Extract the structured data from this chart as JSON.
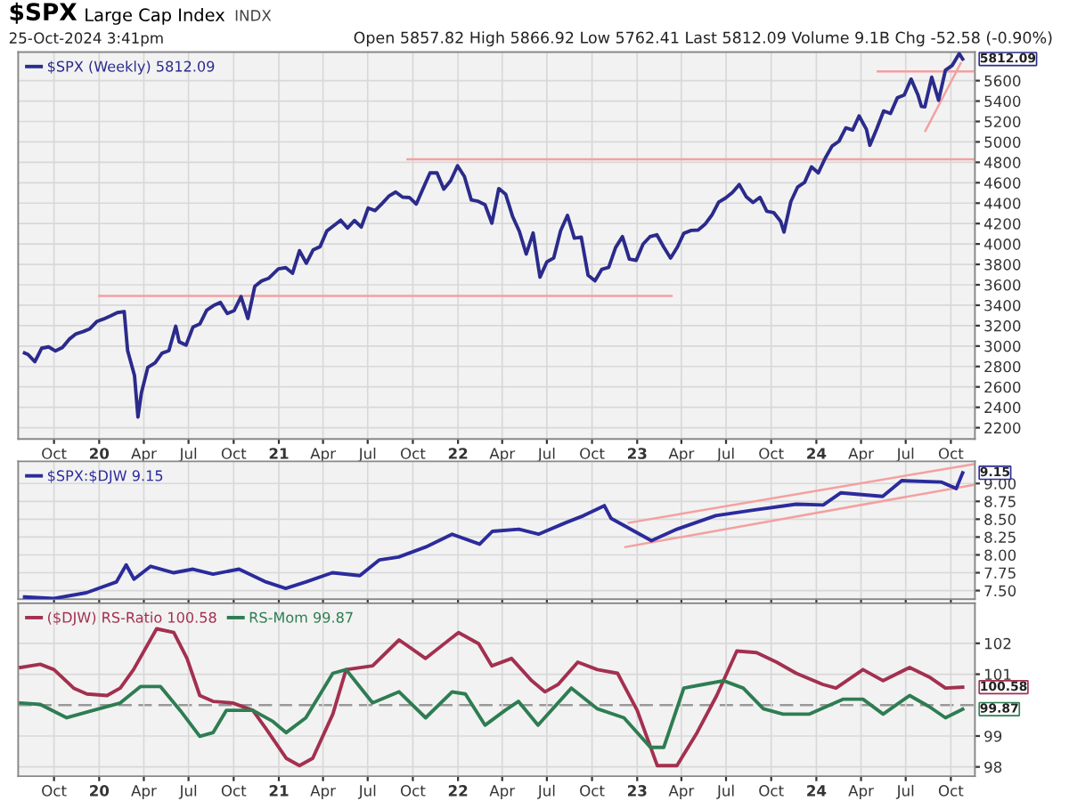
{
  "chart_data": [
    {
      "type": "line",
      "title": "$SPX",
      "subtitle": "25-Oct-2024 3:41pm",
      "annotations": [
        "Large Cap Index",
        "INDX",
        "Open 5857.82 High 5866.92 Low 5762.41 Last 5812.09 Volume 9.1B Chg -52.58 (-0.90%)",
        {
          "text": "5812.09",
          "x": "2024-10-25",
          "y": 5812.09
        }
      ],
      "xlim": [
        "2019-07-20",
        "2024-11-19"
      ],
      "ylim": [
        2090,
        5880
      ],
      "xticks": [
        {
          "value": "2019-10-01",
          "label": "Oct"
        },
        {
          "value": "2020-01-01",
          "label": "20"
        },
        {
          "value": "2020-04-01",
          "label": "Apr"
        },
        {
          "value": "2020-07-01",
          "label": "Jul"
        },
        {
          "value": "2020-10-01",
          "label": "Oct"
        },
        {
          "value": "2021-01-01",
          "label": "21"
        },
        {
          "value": "2021-04-01",
          "label": "Apr"
        },
        {
          "value": "2021-07-01",
          "label": "Jul"
        },
        {
          "value": "2021-10-01",
          "label": "Oct"
        },
        {
          "value": "2022-01-01",
          "label": "22"
        },
        {
          "value": "2022-04-01",
          "label": "Apr"
        },
        {
          "value": "2022-07-01",
          "label": "Jul"
        },
        {
          "value": "2022-10-01",
          "label": "Oct"
        },
        {
          "value": "2023-01-01",
          "label": "23"
        },
        {
          "value": "2023-04-01",
          "label": "Apr"
        },
        {
          "value": "2023-07-01",
          "label": "Jul"
        },
        {
          "value": "2023-10-01",
          "label": "Oct"
        },
        {
          "value": "2024-01-01",
          "label": "24"
        },
        {
          "value": "2024-04-01",
          "label": "Apr"
        },
        {
          "value": "2024-07-01",
          "label": "Jul"
        },
        {
          "value": "2024-10-01",
          "label": "Oct"
        }
      ],
      "yticks": [
        2200,
        2400,
        2600,
        2800,
        3000,
        3200,
        3400,
        3600,
        3800,
        4000,
        4200,
        4400,
        4600,
        4800,
        5000,
        5200,
        5400,
        5600
      ],
      "grid": true,
      "legend": "top left",
      "series": [
        {
          "name": "$SPX (Weekly) 5812.09",
          "color": "#2b2b8c",
          "x": [
            "2019-08-02",
            "2019-08-09",
            "2019-08-23",
            "2019-09-06",
            "2019-09-20",
            "2019-10-04",
            "2019-10-18",
            "2019-11-01",
            "2019-11-15",
            "2019-11-29",
            "2019-12-13",
            "2019-12-27",
            "2020-01-10",
            "2020-01-24",
            "2020-02-07",
            "2020-02-21",
            "2020-02-28",
            "2020-03-13",
            "2020-03-20",
            "2020-03-27",
            "2020-04-09",
            "2020-04-24",
            "2020-05-08",
            "2020-05-22",
            "2020-06-05",
            "2020-06-12",
            "2020-06-26",
            "2020-07-10",
            "2020-07-24",
            "2020-08-07",
            "2020-08-21",
            "2020-09-04",
            "2020-09-18",
            "2020-10-02",
            "2020-10-16",
            "2020-10-30",
            "2020-11-13",
            "2020-11-27",
            "2020-12-11",
            "2020-12-31",
            "2021-01-15",
            "2021-01-29",
            "2021-02-12",
            "2021-02-26",
            "2021-03-12",
            "2021-03-26",
            "2021-04-09",
            "2021-04-23",
            "2021-05-07",
            "2021-05-21",
            "2021-06-04",
            "2021-06-18",
            "2021-07-02",
            "2021-07-16",
            "2021-07-30",
            "2021-08-13",
            "2021-08-27",
            "2021-09-10",
            "2021-09-24",
            "2021-10-08",
            "2021-10-22",
            "2021-11-05",
            "2021-11-19",
            "2021-12-03",
            "2021-12-17",
            "2021-12-31",
            "2022-01-14",
            "2022-01-28",
            "2022-02-11",
            "2022-02-25",
            "2022-03-11",
            "2022-03-25",
            "2022-04-08",
            "2022-04-22",
            "2022-05-06",
            "2022-05-20",
            "2022-06-03",
            "2022-06-17",
            "2022-07-01",
            "2022-07-15",
            "2022-07-29",
            "2022-08-12",
            "2022-08-26",
            "2022-09-09",
            "2022-09-23",
            "2022-10-07",
            "2022-10-21",
            "2022-11-04",
            "2022-11-18",
            "2022-12-02",
            "2022-12-16",
            "2022-12-30",
            "2023-01-13",
            "2023-01-27",
            "2023-02-10",
            "2023-02-24",
            "2023-03-10",
            "2023-03-24",
            "2023-04-06",
            "2023-04-21",
            "2023-05-05",
            "2023-05-19",
            "2023-06-02",
            "2023-06-16",
            "2023-06-30",
            "2023-07-14",
            "2023-07-28",
            "2023-08-11",
            "2023-08-25",
            "2023-09-08",
            "2023-09-22",
            "2023-10-06",
            "2023-10-20",
            "2023-10-27",
            "2023-11-10",
            "2023-11-24",
            "2023-12-08",
            "2023-12-22",
            "2024-01-05",
            "2024-01-19",
            "2024-02-02",
            "2024-02-16",
            "2024-03-01",
            "2024-03-15",
            "2024-03-28",
            "2024-04-12",
            "2024-04-19",
            "2024-05-03",
            "2024-05-17",
            "2024-05-31",
            "2024-06-14",
            "2024-06-28",
            "2024-07-12",
            "2024-07-26",
            "2024-08-02",
            "2024-08-09",
            "2024-08-23",
            "2024-09-06",
            "2024-09-20",
            "2024-10-04",
            "2024-10-18",
            "2024-10-25"
          ],
          "values": [
            2932,
            2918,
            2847,
            2979,
            2992,
            2952,
            2986,
            3067,
            3120,
            3141,
            3169,
            3240,
            3265,
            3295,
            3328,
            3338,
            2954,
            2711,
            2305,
            2541,
            2790,
            2837,
            2930,
            2955,
            3194,
            3041,
            3009,
            3185,
            3216,
            3351,
            3397,
            3427,
            3319,
            3348,
            3484,
            3270,
            3585,
            3638,
            3663,
            3756,
            3768,
            3714,
            3934,
            3811,
            3943,
            3974,
            4129,
            4180,
            4233,
            4156,
            4230,
            4166,
            4352,
            4327,
            4395,
            4468,
            4509,
            4459,
            4455,
            4391,
            4545,
            4697,
            4698,
            4538,
            4620,
            4766,
            4662,
            4432,
            4418,
            4385,
            4204,
            4543,
            4488,
            4272,
            4123,
            3901,
            4108,
            3675,
            3825,
            3863,
            4130,
            4280,
            4057,
            4067,
            3693,
            3639,
            3752,
            3771,
            3965,
            4072,
            3852,
            3840,
            3999,
            4071,
            4090,
            3970,
            3862,
            3971,
            4105,
            4133,
            4136,
            4192,
            4282,
            4410,
            4450,
            4505,
            4582,
            4464,
            4406,
            4457,
            4320,
            4308,
            4224,
            4117,
            4415,
            4559,
            4604,
            4755,
            4697,
            4840,
            4959,
            5006,
            5137,
            5117,
            5254,
            5123,
            4967,
            5128,
            5303,
            5278,
            5432,
            5460,
            5615,
            5459,
            5347,
            5344,
            5634,
            5408,
            5703,
            5751,
            5865,
            5812.09
          ]
        },
        {
          "color": "#f4a0a0",
          "x": [
            "2020-01-01",
            "2023-03-12"
          ],
          "values": [
            3490,
            3490
          ]
        },
        {
          "color": "#f4a0a0",
          "x": [
            "2021-09-20",
            "2024-11-15"
          ],
          "values": [
            4830,
            4830
          ]
        },
        {
          "color": "#f4a0a0",
          "x": [
            "2024-05-05",
            "2024-11-15"
          ],
          "values": [
            5690,
            5690
          ]
        },
        {
          "color": "#f4a0a0",
          "x": [
            "2024-08-10",
            "2024-10-21"
          ],
          "values": [
            5108,
            5770
          ]
        }
      ]
    },
    {
      "type": "line",
      "tick_labels": "y",
      "grid": true,
      "legend": "top left",
      "annotations": [
        {
          "text": "9.15",
          "x": "2024-10-25",
          "y": 9.15
        }
      ],
      "xlim": [
        "2019-07-20",
        "2024-11-19"
      ],
      "ylim": [
        7.38,
        9.31
      ],
      "xticks": [
        {
          "value": "2019-10-01",
          "label": null
        },
        {
          "value": "2020-01-01",
          "label": null
        },
        {
          "value": "2020-04-01",
          "label": null
        },
        {
          "value": "2020-07-01",
          "label": null
        },
        {
          "value": "2020-10-01",
          "label": null
        },
        {
          "value": "2021-01-01",
          "label": null
        },
        {
          "value": "2021-04-01",
          "label": null
        },
        {
          "value": "2021-07-01",
          "label": null
        },
        {
          "value": "2021-10-01",
          "label": null
        },
        {
          "value": "2022-01-01",
          "label": null
        },
        {
          "value": "2022-04-01",
          "label": null
        },
        {
          "value": "2022-07-01",
          "label": null
        },
        {
          "value": "2022-10-01",
          "label": null
        },
        {
          "value": "2023-01-01",
          "label": null
        },
        {
          "value": "2023-04-01",
          "label": null
        },
        {
          "value": "2023-07-01",
          "label": null
        },
        {
          "value": "2023-10-01",
          "label": null
        },
        {
          "value": "2024-01-01",
          "label": null
        },
        {
          "value": "2024-04-01",
          "label": null
        },
        {
          "value": "2024-07-01",
          "label": null
        },
        {
          "value": "2024-10-01",
          "label": null
        }
      ],
      "yticks": [
        {
          "value": 7.5,
          "label": "7.50"
        },
        {
          "value": 7.75,
          "label": "7.75"
        },
        {
          "value": 8.0,
          "label": "8.00"
        },
        {
          "value": 8.25,
          "label": "8.25"
        },
        {
          "value": 8.5,
          "label": "8.50"
        },
        {
          "value": 8.75,
          "label": "8.75"
        },
        {
          "value": 9.0,
          "label": "9.00"
        }
      ],
      "series": [
        {
          "name": "$SPX:$DJW 9.15",
          "color": "#2b2b9c",
          "x": [
            "2019-08-02",
            "2019-10-01",
            "2019-12-06",
            "2020-02-05",
            "2020-02-25",
            "2020-03-12",
            "2020-04-15",
            "2020-06-01",
            "2020-07-10",
            "2020-08-20",
            "2020-10-12",
            "2020-12-06",
            "2021-01-15",
            "2021-02-25",
            "2021-04-20",
            "2021-06-15",
            "2021-07-25",
            "2021-09-02",
            "2021-10-27",
            "2021-12-20",
            "2022-02-14",
            "2022-03-12",
            "2022-05-05",
            "2022-06-14",
            "2022-08-08",
            "2022-09-14",
            "2022-10-26",
            "2022-11-09",
            "2023-01-30",
            "2023-03-23",
            "2023-06-10",
            "2023-08-29",
            "2023-11-21",
            "2024-01-15",
            "2024-02-20",
            "2024-05-15",
            "2024-06-23",
            "2024-09-12",
            "2024-10-12",
            "2024-10-25"
          ],
          "values": [
            7.41,
            7.39,
            7.47,
            7.62,
            7.86,
            7.66,
            7.84,
            7.75,
            7.8,
            7.73,
            7.8,
            7.62,
            7.53,
            7.62,
            7.75,
            7.71,
            7.93,
            7.97,
            8.11,
            8.29,
            8.15,
            8.33,
            8.36,
            8.29,
            8.45,
            8.55,
            8.69,
            8.51,
            8.2,
            8.36,
            8.55,
            8.63,
            8.71,
            8.7,
            8.87,
            8.82,
            9.04,
            9.02,
            8.93,
            9.15
          ]
        },
        {
          "color": "#f4a0a0",
          "x": [
            "2022-12-08",
            "2024-11-15"
          ],
          "values": [
            8.11,
            8.98
          ]
        },
        {
          "color": "#f4a0a0",
          "x": [
            "2022-12-15",
            "2024-11-15"
          ],
          "values": [
            8.45,
            9.27
          ]
        }
      ]
    },
    {
      "type": "line",
      "grid": true,
      "legend": "top left",
      "annotations": [
        {
          "text": "100.58",
          "x": "2024-10-25",
          "y": 100.58
        },
        {
          "text": "99.87",
          "x": "2024-10-25",
          "y": 99.87
        }
      ],
      "xlim": [
        "2019-07-20",
        "2024-11-19"
      ],
      "ylim": [
        97.7,
        103.3
      ],
      "xticks": [
        {
          "value": "2019-10-01",
          "label": "Oct"
        },
        {
          "value": "2020-01-01",
          "label": "20"
        },
        {
          "value": "2020-04-01",
          "label": "Apr"
        },
        {
          "value": "2020-07-01",
          "label": "Jul"
        },
        {
          "value": "2020-10-01",
          "label": "Oct"
        },
        {
          "value": "2021-01-01",
          "label": "21"
        },
        {
          "value": "2021-04-01",
          "label": "Apr"
        },
        {
          "value": "2021-07-01",
          "label": "Jul"
        },
        {
          "value": "2021-10-01",
          "label": "Oct"
        },
        {
          "value": "2022-01-01",
          "label": "22"
        },
        {
          "value": "2022-04-01",
          "label": "Apr"
        },
        {
          "value": "2022-07-01",
          "label": "Jul"
        },
        {
          "value": "2022-10-01",
          "label": "Oct"
        },
        {
          "value": "2023-01-01",
          "label": "23"
        },
        {
          "value": "2023-04-01",
          "label": "Apr"
        },
        {
          "value": "2023-07-01",
          "label": "Jul"
        },
        {
          "value": "2023-10-01",
          "label": "Oct"
        },
        {
          "value": "2024-01-01",
          "label": "24"
        },
        {
          "value": "2024-04-01",
          "label": "Apr"
        },
        {
          "value": "2024-07-01",
          "label": "Jul"
        },
        {
          "value": "2024-10-01",
          "label": "Oct"
        }
      ],
      "yticks": [
        98,
        99,
        101,
        102
      ],
      "ref_lines": [
        {
          "axis": "y",
          "value": 100,
          "color": "#999999",
          "line_style": "dashed"
        }
      ],
      "series": [
        {
          "name": "($DJW) RS-Ratio 100.58",
          "color": "#a3304f",
          "x": [
            "2019-07-25",
            "2019-09-03",
            "2019-10-01",
            "2019-11-10",
            "2019-12-07",
            "2020-01-17",
            "2020-02-13",
            "2020-03-11",
            "2020-04-27",
            "2020-06-01",
            "2020-06-28",
            "2020-07-24",
            "2020-08-20",
            "2020-09-29",
            "2020-11-09",
            "2020-12-06",
            "2021-01-16",
            "2021-02-12",
            "2021-03-11",
            "2021-04-21",
            "2021-05-18",
            "2021-07-11",
            "2021-09-03",
            "2021-10-27",
            "2022-01-02",
            "2022-02-12",
            "2022-03-11",
            "2022-04-20",
            "2022-05-31",
            "2022-06-27",
            "2022-07-24",
            "2022-09-02",
            "2022-10-12",
            "2022-11-22",
            "2023-01-01",
            "2023-02-11",
            "2023-03-23",
            "2023-05-03",
            "2023-06-12",
            "2023-07-23",
            "2023-09-01",
            "2023-10-12",
            "2023-11-21",
            "2024-01-14",
            "2024-02-10",
            "2024-04-05",
            "2024-05-16",
            "2024-07-09",
            "2024-08-18",
            "2024-09-20",
            "2024-10-25"
          ],
          "values": [
            101.22,
            101.32,
            101.15,
            100.55,
            100.36,
            100.31,
            100.55,
            101.15,
            102.47,
            102.35,
            101.51,
            100.31,
            100.12,
            100.07,
            99.83,
            99.23,
            98.28,
            98.04,
            98.28,
            99.71,
            101.15,
            101.27,
            102.11,
            101.51,
            102.35,
            101.99,
            101.27,
            101.51,
            100.79,
            100.43,
            100.67,
            101.39,
            101.15,
            101.03,
            99.83,
            98.04,
            98.04,
            99.11,
            100.31,
            101.75,
            101.7,
            101.39,
            101.03,
            100.67,
            100.55,
            101.15,
            100.79,
            101.22,
            100.91,
            100.55,
            100.58
          ]
        },
        {
          "name": "RS-Mom 99.87",
          "color": "#2e7d52",
          "x": [
            "2019-07-25",
            "2019-09-03",
            "2019-10-27",
            "2019-12-20",
            "2020-02-13",
            "2020-03-25",
            "2020-05-05",
            "2020-06-14",
            "2020-07-24",
            "2020-08-20",
            "2020-09-16",
            "2020-11-09",
            "2020-12-20",
            "2021-01-16",
            "2021-02-25",
            "2021-04-21",
            "2021-05-18",
            "2021-07-11",
            "2021-09-03",
            "2021-10-27",
            "2021-12-20",
            "2022-01-16",
            "2022-02-25",
            "2022-04-07",
            "2022-05-04",
            "2022-06-13",
            "2022-08-20",
            "2022-10-12",
            "2022-12-05",
            "2023-01-28",
            "2023-02-24",
            "2023-04-06",
            "2023-05-16",
            "2023-06-26",
            "2023-08-05",
            "2023-09-15",
            "2023-10-25",
            "2023-12-18",
            "2024-02-24",
            "2024-04-05",
            "2024-05-16",
            "2024-07-09",
            "2024-08-18",
            "2024-09-20",
            "2024-10-25"
          ],
          "values": [
            100.07,
            100.02,
            99.59,
            99.83,
            100.07,
            100.6,
            100.6,
            99.83,
            98.99,
            99.11,
            99.83,
            99.83,
            99.47,
            99.11,
            99.59,
            101.03,
            101.15,
            100.07,
            100.43,
            99.59,
            100.43,
            100.36,
            99.35,
            99.83,
            100.12,
            99.35,
            100.55,
            99.88,
            99.59,
            98.63,
            98.63,
            100.55,
            100.67,
            100.79,
            100.55,
            99.88,
            99.71,
            99.71,
            100.19,
            100.19,
            99.71,
            100.31,
            99.95,
            99.59,
            99.87
          ]
        }
      ]
    }
  ]
}
